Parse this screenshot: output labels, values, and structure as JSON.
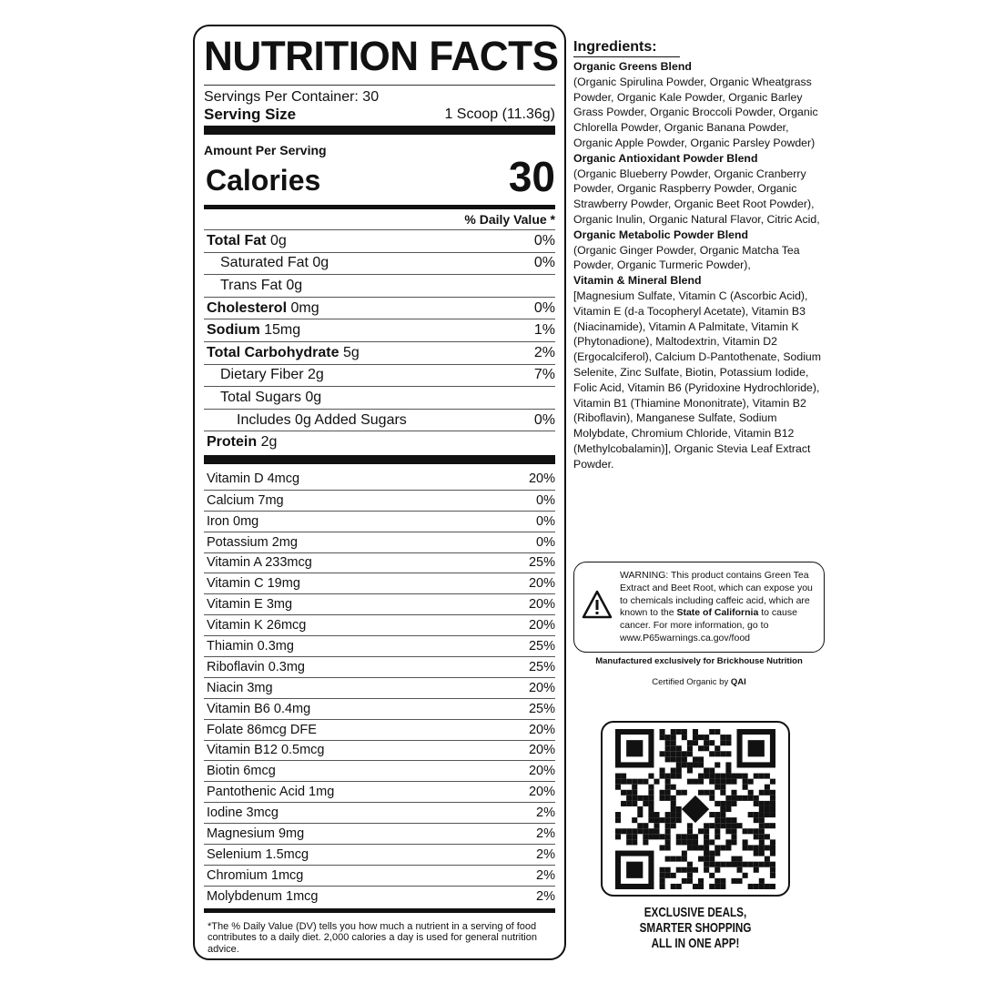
{
  "label": {
    "title": "NUTRITION FACTS",
    "servings": "Servings Per Container: 30",
    "serving_size_label": "Serving Size",
    "serving_size_value": "1 Scoop (11.36g)",
    "amount_per_serving": "Amount Per Serving",
    "calories_label": "Calories",
    "calories_value": "30",
    "dv_header": "% Daily Value *",
    "nutrients": [
      {
        "name": "Total Fat",
        "amount": "0g",
        "dv": "0%",
        "bold": true,
        "indent": 0
      },
      {
        "name": "Saturated Fat",
        "amount": "0g",
        "dv": "0%",
        "bold": false,
        "indent": 1
      },
      {
        "name": "Trans Fat",
        "amount": "0g",
        "dv": "",
        "bold": false,
        "indent": 1
      },
      {
        "name": "Cholesterol",
        "amount": "0mg",
        "dv": "0%",
        "bold": true,
        "indent": 0
      },
      {
        "name": "Sodium",
        "amount": "15mg",
        "dv": "1%",
        "bold": true,
        "indent": 0
      },
      {
        "name": "Total Carbohydrate",
        "amount": "5g",
        "dv": "2%",
        "bold": true,
        "indent": 0
      },
      {
        "name": "Dietary Fiber",
        "amount": "2g",
        "dv": "7%",
        "bold": false,
        "indent": 1
      },
      {
        "name": "Total Sugars",
        "amount": "0g",
        "dv": "",
        "bold": false,
        "indent": 1
      },
      {
        "name": "Includes 0g Added Sugars",
        "amount": "",
        "dv": "0%",
        "bold": false,
        "indent": 2
      },
      {
        "name": "Protein",
        "amount": "2g",
        "dv": "",
        "bold": true,
        "indent": 0
      }
    ],
    "vitamins": [
      {
        "name": "Vitamin D 4mcg",
        "dv": "20%"
      },
      {
        "name": "Calcium 7mg",
        "dv": "0%"
      },
      {
        "name": "Iron 0mg",
        "dv": "0%"
      },
      {
        "name": "Potassium 2mg",
        "dv": "0%"
      },
      {
        "name": "Vitamin A 233mcg",
        "dv": "25%"
      },
      {
        "name": "Vitamin C 19mg",
        "dv": "20%"
      },
      {
        "name": "Vitamin E 3mg",
        "dv": "20%"
      },
      {
        "name": "Vitamin K 26mcg",
        "dv": "20%"
      },
      {
        "name": "Thiamin 0.3mg",
        "dv": "25%"
      },
      {
        "name": "Riboflavin 0.3mg",
        "dv": "25%"
      },
      {
        "name": "Niacin 3mg",
        "dv": "20%"
      },
      {
        "name": "Vitamin B6 0.4mg",
        "dv": "25%"
      },
      {
        "name": "Folate 86mcg DFE",
        "dv": "20%"
      },
      {
        "name": "Vitamin B12 0.5mcg",
        "dv": "20%"
      },
      {
        "name": "Biotin 6mcg",
        "dv": "20%"
      },
      {
        "name": "Pantothenic Acid 1mg",
        "dv": "20%"
      },
      {
        "name": "Iodine 3mcg",
        "dv": "2%"
      },
      {
        "name": "Magnesium 9mg",
        "dv": "2%"
      },
      {
        "name": "Selenium 1.5mcg",
        "dv": "2%"
      },
      {
        "name": "Chromium 1mcg",
        "dv": "2%"
      },
      {
        "name": "Molybdenum 1mcg",
        "dv": "2%"
      }
    ],
    "footnote": "*The % Daily Value (DV) tells you how much a nutrient in a serving of food contributes to a daily diet. 2,000 calories a day is used for general nutrition advice."
  },
  "ingredients": {
    "heading": "Ingredients:",
    "blends": [
      {
        "name": "Organic Greens Blend",
        "text": "(Organic Spirulina Powder, Organic Wheatgrass Powder, Organic Kale Powder, Organic Barley Grass Powder, Organic Broccoli Powder, Organic Chlorella Powder, Organic Banana Powder, Organic Apple Powder, Organic Parsley Powder)"
      },
      {
        "name": "Organic Antioxidant Powder Blend",
        "text": "(Organic Blueberry Powder, Organic Cranberry Powder, Organic Raspberry Powder, Organic Strawberry Powder, Organic Beet Root Powder), Organic Inulin, Organic Natural Flavor, Citric Acid,"
      },
      {
        "name": "Organic Metabolic Powder Blend",
        "text": "(Organic Ginger Powder, Organic Matcha Tea Powder, Organic Turmeric Powder),"
      },
      {
        "name": "Vitamin & Mineral Blend",
        "text": "[Magnesium Sulfate, Vitamin C (Ascorbic Acid), Vitamin E (d-a Tocopheryl Acetate), Vitamin B3 (Niacinamide), Vitamin A Palmitate, Vitamin K (Phytonadione), Maltodextrin, Vitamin D2 (Ergocalciferol), Calcium D-Pantothenate, Sodium Selenite, Zinc Sulfate, Biotin, Potassium Iodide, Folic Acid, Vitamin B6 (Pyridoxine Hydrochloride), Vitamin B1 (Thiamine Mononitrate), Vitamin B2 (Riboflavin), Manganese Sulfate, Sodium Molybdate, Chromium Chloride, Vitamin B12 (Methylcobalamin)], Organic Stevia Leaf Extract Powder."
      }
    ]
  },
  "warning": {
    "icon": "warning-triangle-icon",
    "text_before": "WARNING: This product contains Green Tea Extract and Beet Root, which can expose you to chemicals including caffeic acid, which are known to the ",
    "text_bold": "State of California",
    "text_after": " to cause cancer. For more information, go to www.P65warnings.ca.gov/food"
  },
  "manufacturer": "Manufactured exclusively for Brickhouse Nutrition",
  "certified_prefix": "Certified Organic by ",
  "certified_by": "QAI",
  "qr": {
    "icon": "qr-code-icon"
  },
  "app_promo": [
    "EXCLUSIVE DEALS,",
    "SMARTER SHOPPING",
    "ALL IN ONE APP!"
  ]
}
